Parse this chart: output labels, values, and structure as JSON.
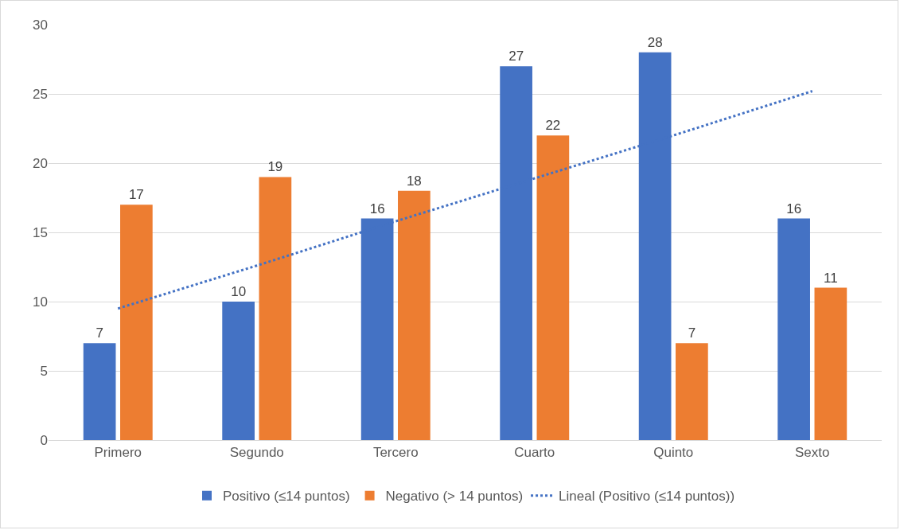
{
  "chart_data": {
    "type": "bar",
    "categories": [
      "Primero",
      "Segundo",
      "Tercero",
      "Cuarto",
      "Quinto",
      "Sexto"
    ],
    "series": [
      {
        "name": "Positivo (≤14 puntos)",
        "color": "#4472c4",
        "values": [
          7,
          10,
          16,
          27,
          28,
          16
        ],
        "value_labels": [
          "7",
          "10",
          "16",
          "27",
          "28",
          "16"
        ]
      },
      {
        "name": "Negativo (> 14 puntos)",
        "color": "#ed7d31",
        "values": [
          17,
          19,
          18,
          22,
          7,
          11
        ],
        "value_labels": [
          "17",
          "19",
          "18",
          "22",
          "7",
          "11"
        ]
      },
      {
        "name": "Lineal (Positivo (≤14 puntos))",
        "type": "line",
        "color": "#4472c4",
        "line_style": "dotted",
        "values": [
          9.5,
          12.6,
          15.8,
          18.9,
          22.0,
          25.2
        ]
      }
    ],
    "ylim": [
      0,
      30
    ],
    "yticks": [
      0,
      5,
      10,
      15,
      20,
      25,
      30
    ],
    "grid": "y",
    "legend": "bottom",
    "marker": "none"
  }
}
